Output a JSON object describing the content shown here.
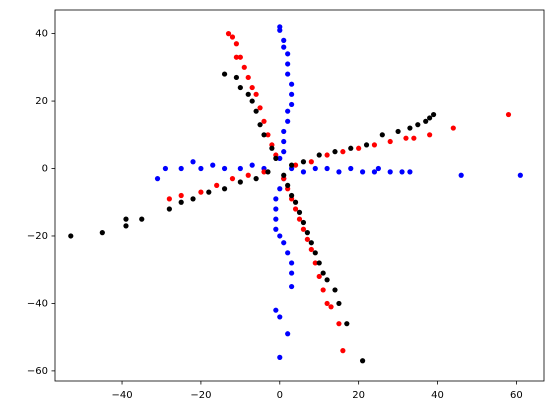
{
  "chart_data": {
    "type": "scatter",
    "xlim": [
      -57,
      67
    ],
    "ylim": [
      -63,
      47
    ],
    "xticks": [
      {
        "value": -40,
        "label": "−40"
      },
      {
        "value": -20,
        "label": "−20"
      },
      0,
      20,
      40,
      60
    ],
    "yticks": [
      {
        "value": -60,
        "label": "−60"
      },
      {
        "value": -40,
        "label": "−40"
      },
      {
        "value": -20,
        "label": "−20"
      },
      0,
      20,
      40
    ],
    "series": [
      {
        "color": "#0000ff",
        "x": [
          0,
          0,
          1,
          1,
          2,
          2,
          2,
          3,
          3,
          3,
          2,
          2,
          1,
          1,
          1,
          0,
          1,
          0,
          -1,
          -1,
          -1,
          -1,
          0,
          1,
          2,
          3,
          3,
          3,
          -1,
          0,
          2,
          0,
          -31,
          -29,
          -25,
          -22,
          -20,
          -17,
          -14,
          -10,
          -7,
          -4,
          3,
          6,
          9,
          12,
          15,
          18,
          21,
          24,
          25,
          28,
          31,
          33,
          46,
          61
        ],
        "y": [
          42,
          41,
          38,
          36,
          34,
          31,
          28,
          25,
          22,
          19,
          17,
          14,
          11,
          8,
          5,
          3,
          -3,
          -6,
          -9,
          -12,
          -15,
          -18,
          -20,
          -22,
          -25,
          -28,
          -31,
          -35,
          -42,
          -44,
          -49,
          -56,
          -3,
          0,
          0,
          2,
          0,
          1,
          0,
          0,
          1,
          0,
          0,
          -1,
          0,
          0,
          -1,
          0,
          -1,
          -1,
          0,
          -1,
          -1,
          -1,
          -2,
          -2
        ]
      },
      {
        "color": "#ff0000",
        "x": [
          -13,
          -12,
          -11,
          -11,
          -10,
          -9,
          -8,
          -7,
          -6,
          -5,
          -4,
          -3,
          -2,
          -1,
          1,
          2,
          3,
          4,
          5,
          6,
          7,
          8,
          9,
          10,
          11,
          12,
          13,
          15,
          16,
          -28,
          -25,
          -20,
          -16,
          -12,
          -8,
          -4,
          4,
          8,
          12,
          16,
          20,
          24,
          28,
          32,
          34,
          38,
          44,
          58
        ],
        "y": [
          40,
          39,
          37,
          33,
          33,
          30,
          27,
          24,
          22,
          18,
          14,
          10,
          7,
          4,
          -3,
          -6,
          -9,
          -12,
          -15,
          -18,
          -21,
          -24,
          -28,
          -32,
          -36,
          -40,
          -41,
          -46,
          -54,
          -9,
          -8,
          -7,
          -5,
          -3,
          -2,
          -1,
          1,
          2,
          4,
          5,
          6,
          7,
          8,
          9,
          9,
          10,
          12,
          16
        ]
      },
      {
        "color": "#000000",
        "x": [
          -53,
          -45,
          -39,
          -39,
          -35,
          -28,
          -25,
          -22,
          -18,
          -14,
          -10,
          -6,
          -3,
          3,
          6,
          10,
          14,
          18,
          22,
          26,
          30,
          33,
          35,
          37,
          38,
          39,
          -14,
          -11,
          -10,
          -8,
          -7,
          -6,
          -5,
          -4,
          -2,
          -1,
          1,
          2,
          3,
          4,
          5,
          6,
          7,
          8,
          9,
          10,
          11,
          12,
          14,
          15,
          17,
          21
        ],
        "y": [
          -20,
          -19,
          -17,
          -15,
          -15,
          -12,
          -10,
          -9,
          -7,
          -6,
          -4,
          -3,
          -1,
          1,
          2,
          4,
          5,
          6,
          7,
          10,
          11,
          12,
          13,
          14,
          15,
          16,
          28,
          27,
          24,
          22,
          20,
          17,
          13,
          10,
          6,
          3,
          -2,
          -5,
          -8,
          -10,
          -13,
          -16,
          -19,
          -22,
          -25,
          -28,
          -31,
          -33,
          -36,
          -40,
          -46,
          -57
        ]
      }
    ]
  }
}
